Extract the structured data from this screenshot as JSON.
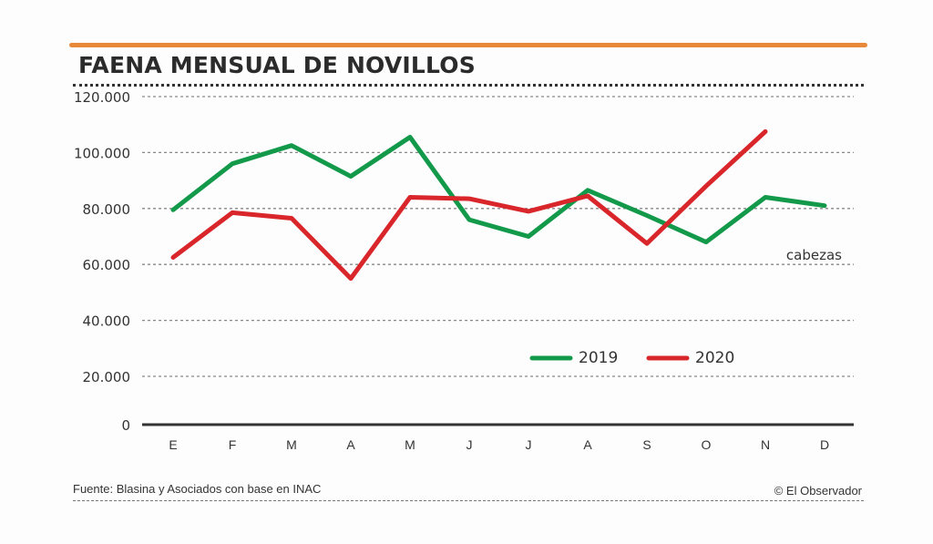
{
  "chart_data": {
    "type": "line",
    "title": "FAENA MENSUAL DE NOVILLOS",
    "unit_label": "cabezas",
    "categories": [
      "E",
      "F",
      "M",
      "A",
      "M",
      "J",
      "J",
      "A",
      "S",
      "O",
      "N",
      "D"
    ],
    "series": [
      {
        "name": "2019",
        "color": "#12994a",
        "values": [
          79500,
          96000,
          102500,
          91500,
          105500,
          76000,
          70000,
          86500,
          77500,
          68000,
          84000,
          81000
        ]
      },
      {
        "name": "2020",
        "color": "#d9262b",
        "values": [
          62500,
          78500,
          76500,
          55000,
          84000,
          83500,
          79000,
          84500,
          67500,
          88000,
          107500,
          null
        ]
      }
    ],
    "yticks": [
      0,
      20000,
      40000,
      60000,
      80000,
      100000,
      120000
    ],
    "ytick_labels": [
      "0",
      "20.000",
      "40.000",
      "60.000",
      "80.000",
      "100.000",
      "120.000"
    ],
    "ylim": [
      0,
      120000
    ],
    "grid": true,
    "legend_position": "lower-right",
    "xlabel": "",
    "ylabel": ""
  },
  "footer": {
    "source": "Fuente: Blasina y Asociados con base en INAC",
    "credit": "© El Observador"
  },
  "accent_color": "#e8893a"
}
